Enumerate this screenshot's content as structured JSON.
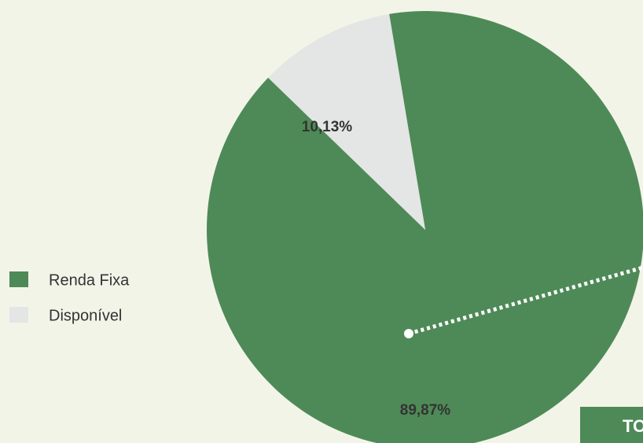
{
  "chart_data": {
    "type": "pie",
    "categories": [
      "Renda Fixa",
      "Disponível"
    ],
    "values": [
      89.87,
      10.13
    ],
    "value_labels": [
      "89,87%",
      "10,13%"
    ],
    "colors": [
      "#4e8a57",
      "#e4e5e5"
    ],
    "legend": "left",
    "annotation": "TO"
  }
}
